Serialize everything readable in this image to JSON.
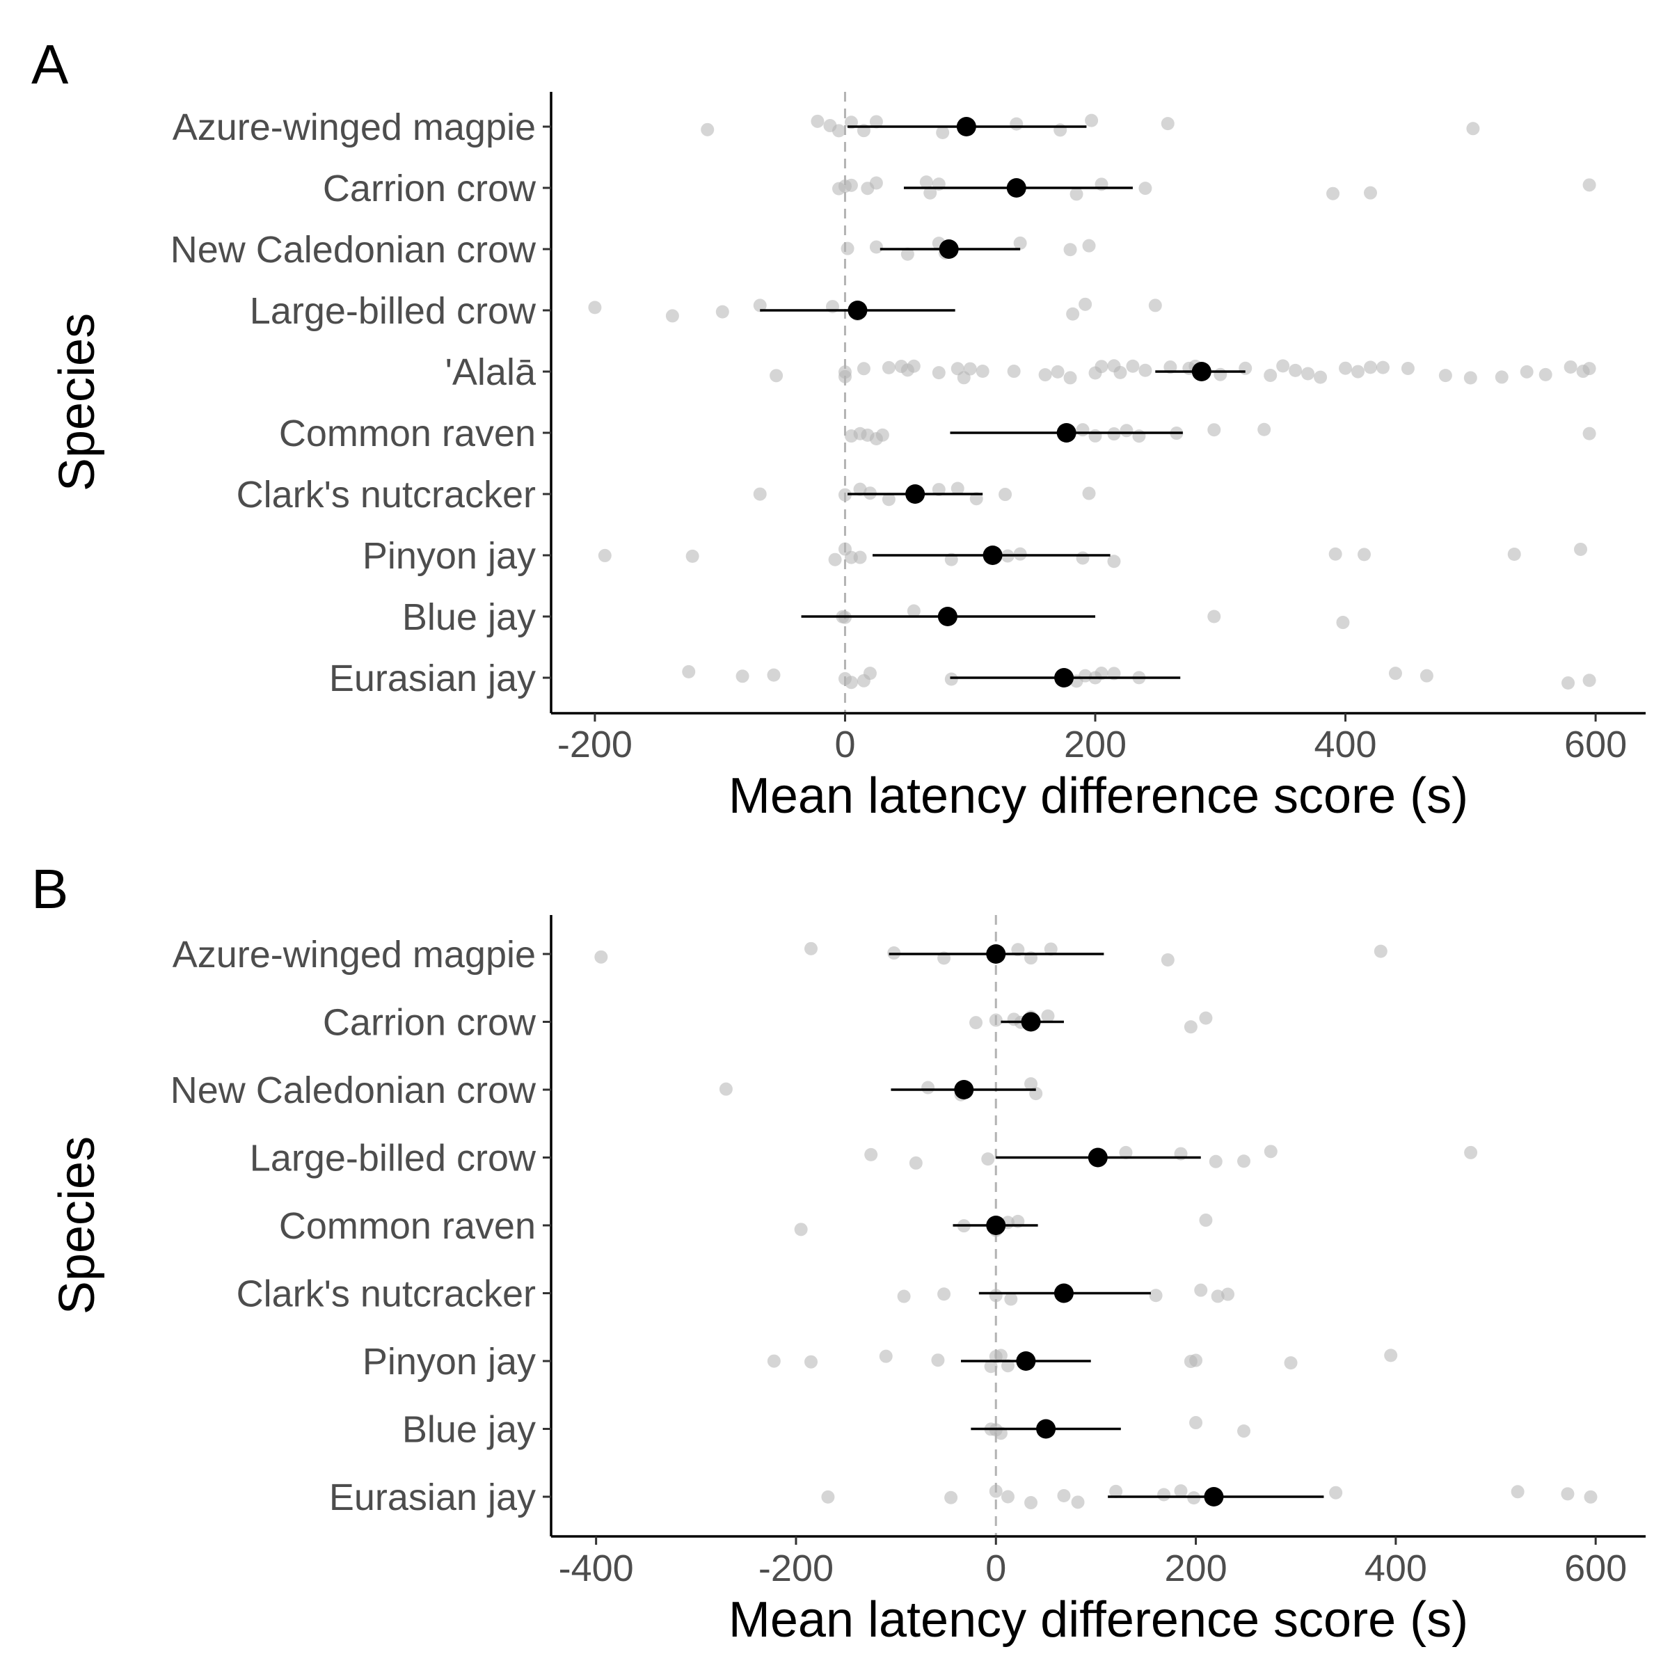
{
  "chart_data": [
    {
      "type": "scatter",
      "panel_label": "A",
      "xlabel": "Mean latency difference score (s)",
      "ylabel": "Species",
      "xlim": [
        -235,
        640
      ],
      "x_ticks": [
        -200,
        0,
        200,
        400,
        600
      ],
      "x_tick_labels": [
        "-200",
        "0",
        "200",
        "400",
        "600"
      ],
      "reference_line_x": 0,
      "grid": false,
      "categories": [
        "Azure-winged magpie",
        "Carrion crow",
        "New Caledonian crow",
        "Large-billed crow",
        "'Alalā",
        "Common raven",
        "Clark's nutcracker",
        "Pinyon jay",
        "Blue jay",
        "Eurasian jay"
      ],
      "means": [
        97,
        137,
        83,
        10,
        285,
        177,
        56,
        118,
        82,
        175
      ],
      "ci_low": [
        2,
        47,
        28,
        -68,
        248,
        84,
        2,
        22,
        -35,
        84
      ],
      "ci_high": [
        193,
        230,
        140,
        88,
        320,
        270,
        110,
        212,
        200,
        268
      ],
      "raw_points": [
        [
          -110,
          -22,
          -12,
          -5,
          5,
          15,
          25,
          78,
          137,
          172,
          197,
          258,
          502
        ],
        [
          -5,
          0,
          5,
          18,
          25,
          65,
          68,
          75,
          135,
          185,
          205,
          240,
          390,
          420,
          595
        ],
        [
          2,
          25,
          50,
          75,
          80,
          140,
          180,
          195
        ],
        [
          -200,
          -138,
          -98,
          -68,
          -10,
          10,
          182,
          192,
          248
        ],
        [
          -55,
          0,
          0,
          15,
          35,
          45,
          50,
          55,
          75,
          90,
          95,
          100,
          110,
          135,
          160,
          170,
          180,
          200,
          205,
          215,
          220,
          230,
          240,
          260,
          275,
          280,
          300,
          320,
          340,
          350,
          360,
          370,
          380,
          400,
          410,
          420,
          430,
          450,
          480,
          500,
          525,
          545,
          560,
          580,
          590,
          595
        ],
        [
          5,
          12,
          18,
          25,
          30,
          190,
          200,
          215,
          225,
          235,
          265,
          295,
          335,
          595
        ],
        [
          -68,
          0,
          12,
          20,
          35,
          75,
          90,
          105,
          128,
          195
        ],
        [
          -192,
          -122,
          -8,
          0,
          5,
          12,
          85,
          130,
          140,
          190,
          215,
          392,
          415,
          535,
          588
        ],
        [
          -2,
          0,
          55,
          295,
          398
        ],
        [
          -125,
          -82,
          -57,
          0,
          5,
          15,
          20,
          85,
          185,
          192,
          200,
          205,
          215,
          235,
          440,
          465,
          578,
          595
        ]
      ]
    },
    {
      "type": "scatter",
      "panel_label": "B",
      "xlabel": "Mean latency difference score (s)",
      "ylabel": "Species",
      "xlim": [
        -445,
        650
      ],
      "x_ticks": [
        -400,
        -200,
        0,
        200,
        400,
        600
      ],
      "x_tick_labels": [
        "-400",
        "-200",
        "0",
        "200",
        "400",
        "600"
      ],
      "reference_line_x": 0,
      "grid": false,
      "categories": [
        "Azure-winged magpie",
        "Carrion crow",
        "New Caledonian crow",
        "Large-billed crow",
        "Common raven",
        "Clark's nutcracker",
        "Pinyon jay",
        "Blue jay",
        "Eurasian jay"
      ],
      "means": [
        0,
        35,
        -32,
        102,
        0,
        68,
        30,
        50,
        218
      ],
      "ci_low": [
        -107,
        5,
        -105,
        0,
        -43,
        -17,
        -35,
        -25,
        112
      ],
      "ci_high": [
        108,
        68,
        40,
        205,
        42,
        155,
        95,
        125,
        328
      ],
      "raw_points": [
        [
          -395,
          -185,
          -102,
          -52,
          22,
          35,
          55,
          172,
          385
        ],
        [
          -20,
          0,
          18,
          25,
          35,
          52,
          195,
          210
        ],
        [
          -270,
          -68,
          -35,
          35,
          40
        ],
        [
          -125,
          -80,
          -8,
          130,
          185,
          220,
          248,
          275,
          475
        ],
        [
          -195,
          -32,
          0,
          12,
          22,
          210
        ],
        [
          -92,
          -52,
          0,
          15,
          160,
          205,
          222,
          232
        ],
        [
          -222,
          -185,
          -110,
          -58,
          -5,
          0,
          5,
          12,
          195,
          200,
          295,
          395
        ],
        [
          -5,
          0,
          5,
          200,
          248
        ],
        [
          -168,
          -45,
          0,
          12,
          35,
          68,
          82,
          120,
          168,
          185,
          198,
          340,
          522,
          572,
          595
        ]
      ]
    }
  ]
}
